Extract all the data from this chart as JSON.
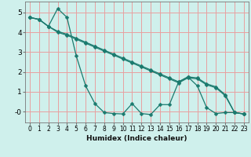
{
  "xlabel": "Humidex (Indice chaleur)",
  "bg_color": "#cff0ec",
  "grid_color": "#e8a0a0",
  "line_color": "#1a7a6e",
  "xlim": [
    -0.5,
    23.5
  ],
  "ylim": [
    -0.55,
    5.55
  ],
  "xticks": [
    0,
    1,
    2,
    3,
    4,
    5,
    6,
    7,
    8,
    9,
    10,
    11,
    12,
    13,
    14,
    15,
    16,
    17,
    18,
    19,
    20,
    21,
    22,
    23
  ],
  "yticks": [
    0,
    1,
    2,
    3,
    4,
    5
  ],
  "ytick_labels": [
    "-0",
    "1",
    "2",
    "3",
    "4",
    "5"
  ],
  "line1_x": [
    0,
    1,
    2,
    3,
    4,
    5,
    6,
    7,
    8,
    9,
    10,
    11,
    12,
    13,
    14,
    15,
    16,
    17,
    18,
    19,
    20,
    21,
    22,
    23
  ],
  "line1_y": [
    4.75,
    4.65,
    4.3,
    5.2,
    4.75,
    2.8,
    1.3,
    0.4,
    -0.05,
    -0.1,
    -0.12,
    0.4,
    -0.1,
    -0.15,
    0.35,
    0.35,
    1.5,
    1.75,
    1.3,
    0.2,
    -0.1,
    -0.05,
    -0.05,
    -0.12
  ],
  "line2_x": [
    0,
    1,
    2,
    3,
    4,
    5,
    6,
    7,
    8,
    9,
    10,
    11,
    12,
    13,
    14,
    15,
    16,
    17,
    18,
    19,
    20,
    21,
    22,
    23
  ],
  "line2_y": [
    4.75,
    4.65,
    4.3,
    4.0,
    3.85,
    3.65,
    3.45,
    3.25,
    3.05,
    2.85,
    2.65,
    2.45,
    2.25,
    2.05,
    1.85,
    1.65,
    1.45,
    1.7,
    1.65,
    1.35,
    1.2,
    0.8,
    -0.05,
    -0.12
  ],
  "line3_x": [
    0,
    1,
    2,
    3,
    4,
    5,
    6,
    7,
    8,
    9,
    10,
    11,
    12,
    13,
    14,
    15,
    16,
    17,
    18,
    19,
    20,
    21,
    22,
    23
  ],
  "line3_y": [
    4.75,
    4.65,
    4.3,
    4.05,
    3.9,
    3.7,
    3.5,
    3.3,
    3.1,
    2.9,
    2.7,
    2.5,
    2.3,
    2.1,
    1.9,
    1.7,
    1.5,
    1.75,
    1.7,
    1.4,
    1.25,
    0.85,
    -0.05,
    -0.12
  ]
}
